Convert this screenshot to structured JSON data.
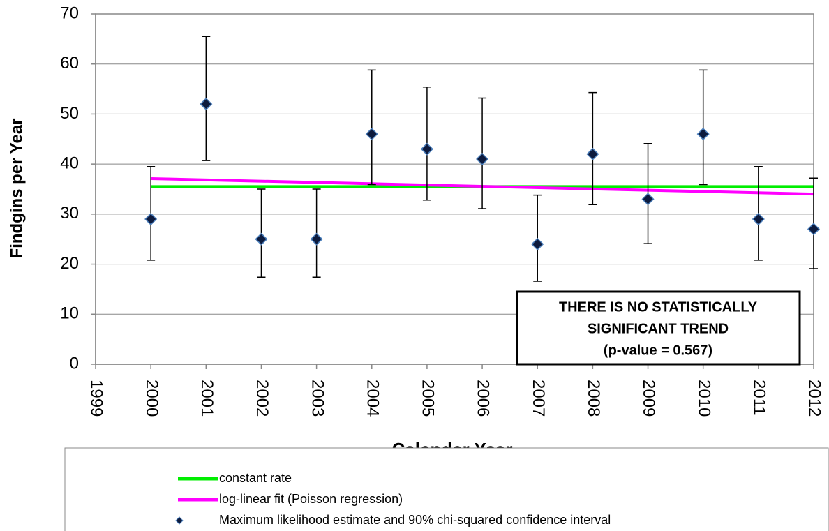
{
  "chart_data": {
    "type": "scatter",
    "xlabel": "Calendar Year",
    "ylabel": "Findgins per Year",
    "xlim": [
      1999,
      2012
    ],
    "xticks": [
      1999,
      2000,
      2001,
      2002,
      2003,
      2004,
      2005,
      2006,
      2007,
      2008,
      2009,
      2010,
      2011,
      2012
    ],
    "ylim": [
      0,
      70
    ],
    "yticks": [
      0,
      10,
      20,
      30,
      40,
      50,
      60,
      70
    ],
    "grid": true,
    "legend": "bottom",
    "annotation": [
      "THERE IS NO STATISTICALLY",
      "SIGNIFICANT TREND",
      "(p-value = 0.567)"
    ],
    "series": [
      {
        "name": "constant rate",
        "color": "#00ee00",
        "style": "line",
        "x": [
          2000,
          2012
        ],
        "values": [
          35.5,
          35.5
        ]
      },
      {
        "name": "log-linear fit (Poisson regression)",
        "color": "#ff00ff",
        "style": "line",
        "x": [
          2000,
          2012
        ],
        "values": [
          37.1,
          34.0
        ]
      },
      {
        "name": "Maximum likelihood estimate and 90% chi-squared confidence interval",
        "color": "#0d1b3e",
        "style": "errorbar",
        "x": [
          2000,
          2001,
          2002,
          2003,
          2004,
          2005,
          2006,
          2007,
          2008,
          2009,
          2010,
          2011,
          2012
        ],
        "values": [
          29,
          52,
          25,
          25,
          46,
          43,
          41,
          24,
          42,
          33,
          46,
          29,
          27
        ],
        "ci_lower": [
          20.8,
          40.7,
          17.4,
          17.4,
          35.9,
          32.8,
          31.1,
          16.6,
          31.9,
          24.1,
          35.9,
          20.8,
          19.1
        ],
        "ci_upper": [
          39.5,
          65.5,
          35.0,
          35.0,
          58.8,
          55.4,
          53.2,
          33.8,
          54.3,
          44.1,
          58.8,
          39.5,
          37.2
        ]
      }
    ]
  }
}
